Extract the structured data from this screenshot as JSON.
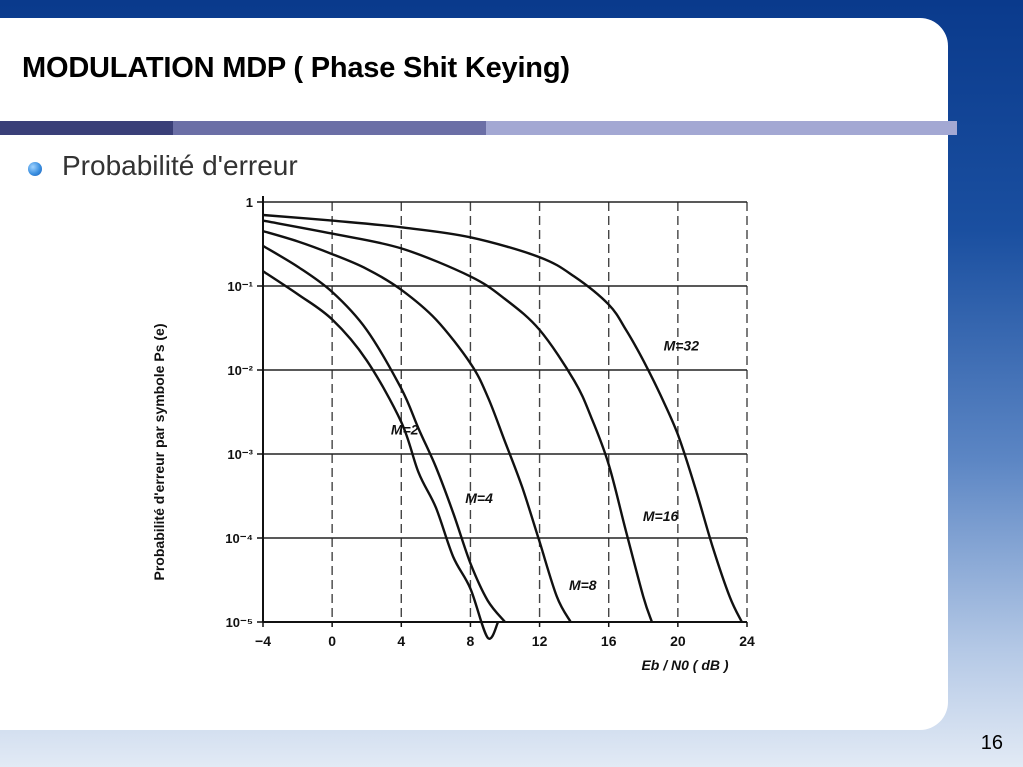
{
  "slide": {
    "title": "MODULATION MDP ( Phase Shit Keying)",
    "bullet": "Probabilité d'erreur",
    "page_number": "16"
  },
  "colors": {
    "background_top": "#0a3a8c",
    "card": "#ffffff",
    "rule_dark": "#3a3f78",
    "rule_mid": "#6b6fa6",
    "rule_light": "#a3a8d3",
    "bullet": "#3a8fe0",
    "curve": "#111111"
  },
  "chart_data": {
    "type": "line",
    "title": "",
    "xlabel": "Eb / N0 ( dB )",
    "ylabel": "Probabilité d'erreur par symbole Ps (e)",
    "xlim": [
      -4,
      24
    ],
    "ylim": [
      1e-05,
      1
    ],
    "y_scale": "log",
    "grid": true,
    "x_ticks": [
      -4,
      0,
      4,
      8,
      12,
      16,
      20,
      24
    ],
    "x_tick_labels": [
      "−4",
      "0",
      "4",
      "8",
      "12",
      "16",
      "20",
      "24"
    ],
    "y_ticks": [
      1,
      0.1,
      0.01,
      0.001,
      0.0001,
      1e-05
    ],
    "y_tick_labels": [
      "1",
      "10⁻¹",
      "10⁻²",
      "10⁻³",
      "10⁻⁴",
      "10⁻⁵"
    ],
    "series": [
      {
        "name": "M=2",
        "label_at": [
          4.2,
          0.0017
        ],
        "x": [
          -4,
          -2,
          0,
          2,
          4,
          5,
          6,
          7,
          8,
          9,
          9.6
        ],
        "y": [
          0.15,
          0.08,
          0.04,
          0.013,
          0.0024,
          0.0006,
          0.00023,
          6e-05,
          2.5e-05,
          6.5e-06,
          1e-05
        ]
      },
      {
        "name": "M=4",
        "label_at": [
          8.5,
          0.00026
        ],
        "x": [
          -4,
          -2,
          0,
          2,
          4,
          5,
          6,
          7,
          8,
          9,
          10
        ],
        "y": [
          0.3,
          0.17,
          0.085,
          0.03,
          0.006,
          0.002,
          0.0007,
          0.0002,
          5e-05,
          1.8e-05,
          1e-05
        ]
      },
      {
        "name": "M=8",
        "label_at": [
          14.5,
          2.4e-05
        ],
        "x": [
          -4,
          -2,
          0,
          2,
          4,
          6,
          8,
          9,
          10,
          11,
          12,
          13,
          13.8
        ],
        "y": [
          0.45,
          0.34,
          0.24,
          0.16,
          0.09,
          0.04,
          0.012,
          0.0048,
          0.0014,
          0.0004,
          9e-05,
          2e-05,
          1e-05
        ]
      },
      {
        "name": "M=16",
        "label_at": [
          19,
          0.00016
        ],
        "x": [
          -4,
          0,
          4,
          8,
          10,
          12,
          14,
          15,
          16,
          17,
          18,
          18.5
        ],
        "y": [
          0.6,
          0.42,
          0.28,
          0.13,
          0.07,
          0.03,
          0.0075,
          0.0027,
          0.00075,
          0.00012,
          2e-05,
          1e-05
        ]
      },
      {
        "name": "M=32",
        "label_at": [
          20.2,
          0.017
        ],
        "x": [
          -4,
          0,
          4,
          8,
          12,
          14,
          16,
          17,
          18,
          19,
          20,
          21,
          22,
          23,
          23.7
        ],
        "y": [
          0.7,
          0.6,
          0.5,
          0.38,
          0.22,
          0.13,
          0.06,
          0.03,
          0.013,
          0.005,
          0.0017,
          0.0004,
          8e-05,
          2e-05,
          1e-05
        ]
      }
    ]
  }
}
